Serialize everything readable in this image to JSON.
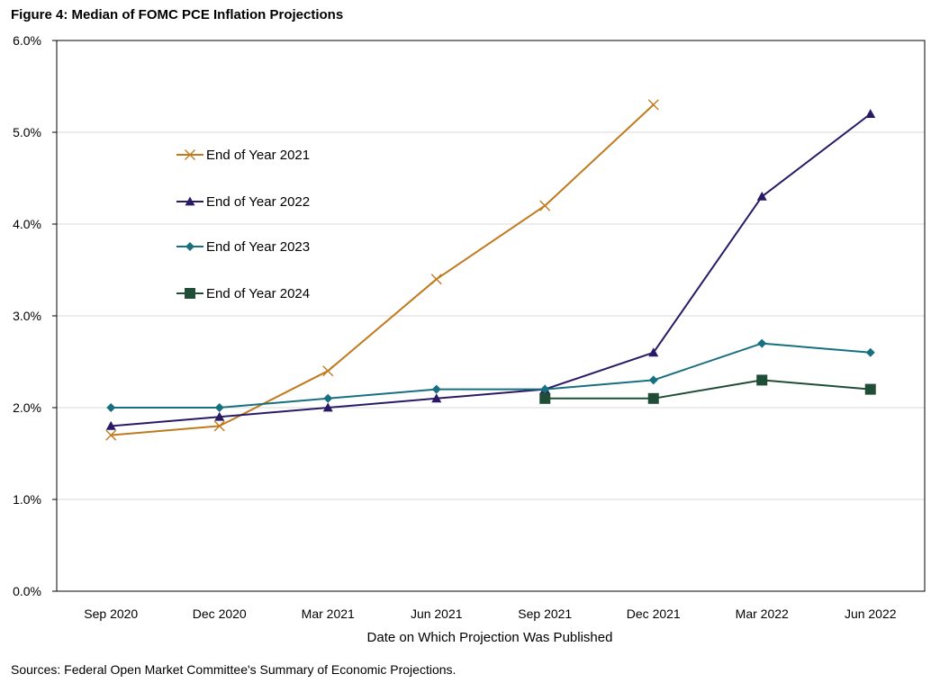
{
  "figure_title": "Figure 4: Median of FOMC PCE Inflation Projections",
  "source_note": "Sources: Federal Open Market Committee's Summary of Economic Projections.",
  "chart_data": {
    "type": "line",
    "title": "Figure 4: Median of FOMC PCE Inflation Projections",
    "xlabel": "Date on Which Projection Was Published",
    "ylabel": "",
    "categories": [
      "Sep 2020",
      "Dec 2020",
      "Mar 2021",
      "Jun 2021",
      "Sep 2021",
      "Dec 2021",
      "Mar 2022",
      "Jun 2022"
    ],
    "ylim": [
      0,
      6
    ],
    "yticks": [
      0,
      1,
      2,
      3,
      4,
      5,
      6
    ],
    "ytick_labels": [
      "0.0%",
      "1.0%",
      "2.0%",
      "3.0%",
      "4.0%",
      "5.0%",
      "6.0%"
    ],
    "grid": true,
    "legend_position": "top-left",
    "series": [
      {
        "name": "End of Year 2021",
        "color": "#C07A1E",
        "marker": "x",
        "values": [
          1.7,
          1.8,
          2.4,
          3.4,
          4.2,
          5.3,
          null,
          null
        ]
      },
      {
        "name": "End of Year 2022",
        "color": "#2A1A66",
        "marker": "triangle",
        "values": [
          1.8,
          1.9,
          2.0,
          2.1,
          2.2,
          2.6,
          4.3,
          5.2
        ]
      },
      {
        "name": "End of Year 2023",
        "color": "#17707F",
        "marker": "diamond",
        "values": [
          2.0,
          2.0,
          2.1,
          2.2,
          2.2,
          2.3,
          2.7,
          2.6
        ]
      },
      {
        "name": "End of Year 2024",
        "color": "#1F4D36",
        "marker": "square",
        "values": [
          null,
          null,
          null,
          null,
          2.1,
          2.1,
          2.3,
          2.2
        ]
      }
    ]
  }
}
